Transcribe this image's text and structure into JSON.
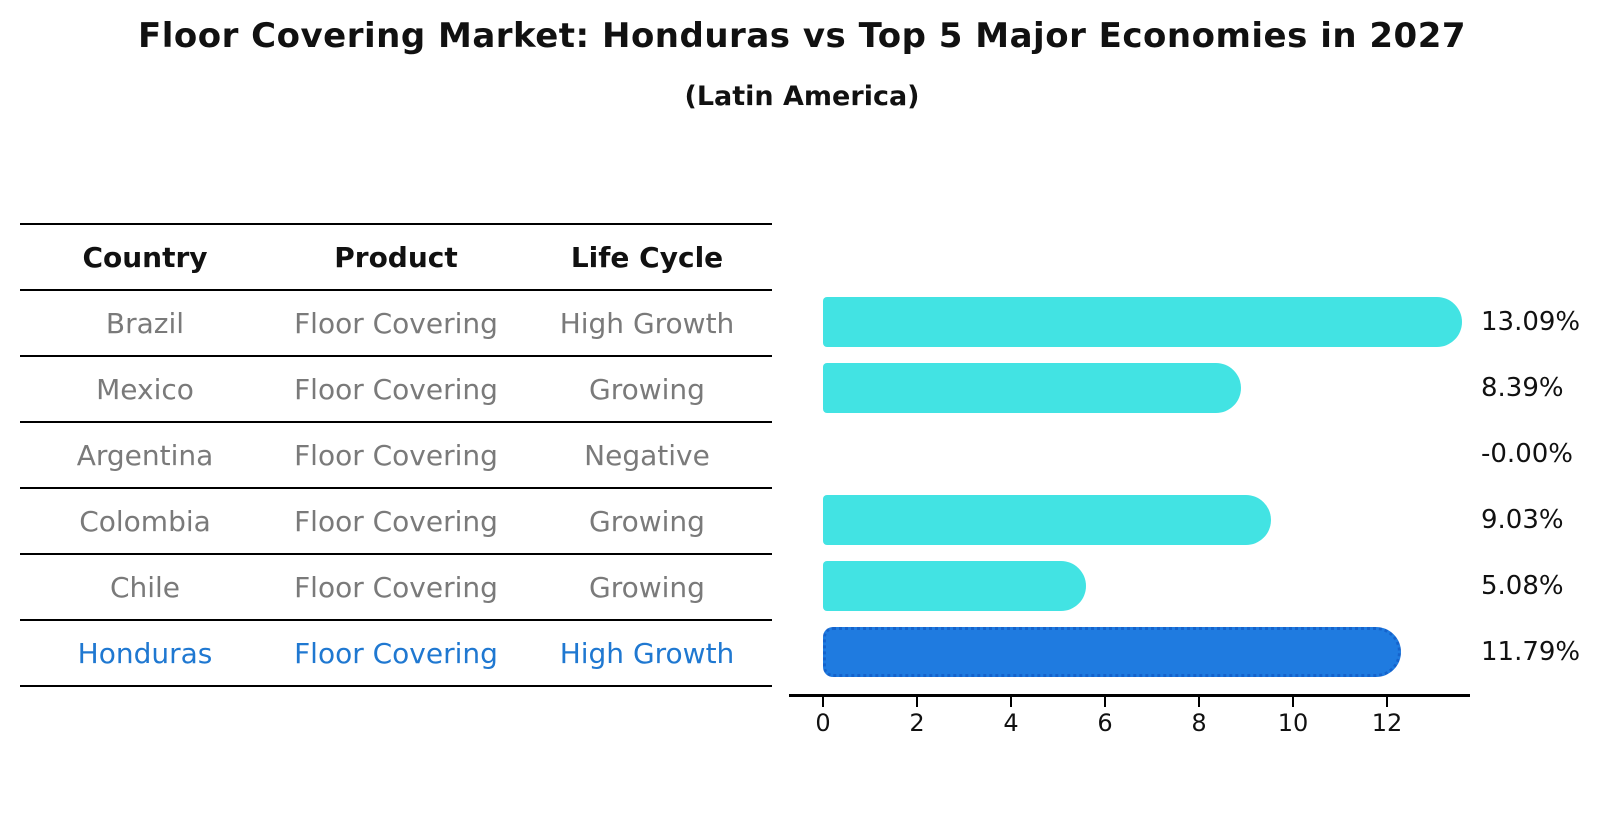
{
  "title": "Floor Covering Market: Honduras vs Top 5 Major Economies in 2027",
  "subtitle": "(Latin America)",
  "table": {
    "headers": [
      "Country",
      "Product",
      "Life Cycle"
    ],
    "rows": [
      {
        "country": "Brazil",
        "product": "Floor Covering",
        "life_cycle": "High Growth",
        "highlight": false
      },
      {
        "country": "Mexico",
        "product": "Floor Covering",
        "life_cycle": "Growing",
        "highlight": false
      },
      {
        "country": "Argentina",
        "product": "Floor Covering",
        "life_cycle": "Negative",
        "highlight": false
      },
      {
        "country": "Colombia",
        "product": "Floor Covering",
        "life_cycle": "Growing",
        "highlight": false
      },
      {
        "country": "Chile",
        "product": "Floor Covering",
        "life_cycle": "Growing",
        "highlight": false
      },
      {
        "country": "Honduras",
        "product": "Floor Covering",
        "life_cycle": "High Growth",
        "highlight": true
      }
    ]
  },
  "chart_data": {
    "type": "bar",
    "orientation": "horizontal",
    "title": "Floor Covering Market: Honduras vs Top 5 Major Economies in 2027",
    "subtitle": "(Latin America)",
    "categories": [
      "Brazil",
      "Mexico",
      "Argentina",
      "Colombia",
      "Chile",
      "Honduras"
    ],
    "values": [
      13.09,
      8.39,
      -0.0,
      9.03,
      5.08,
      11.79
    ],
    "value_labels": [
      "13.09%",
      "8.39%",
      "-0.00%",
      "9.03%",
      "5.08%",
      "11.79%"
    ],
    "xlabel": "",
    "ylabel": "",
    "x_ticks": [
      0,
      2,
      4,
      6,
      8,
      10,
      12
    ],
    "xlim": [
      -0.7,
      13.9
    ],
    "grid": false,
    "legend_position": "none",
    "highlight_index": 5,
    "colors": {
      "bar": "#42e3e3",
      "highlight_bar": "#1f7be0",
      "highlight_border": "#1563cc",
      "highlight_text": "#1f78d1",
      "table_text": "#7a7a7a",
      "value_text": "#111111",
      "axis": "#000000"
    }
  }
}
